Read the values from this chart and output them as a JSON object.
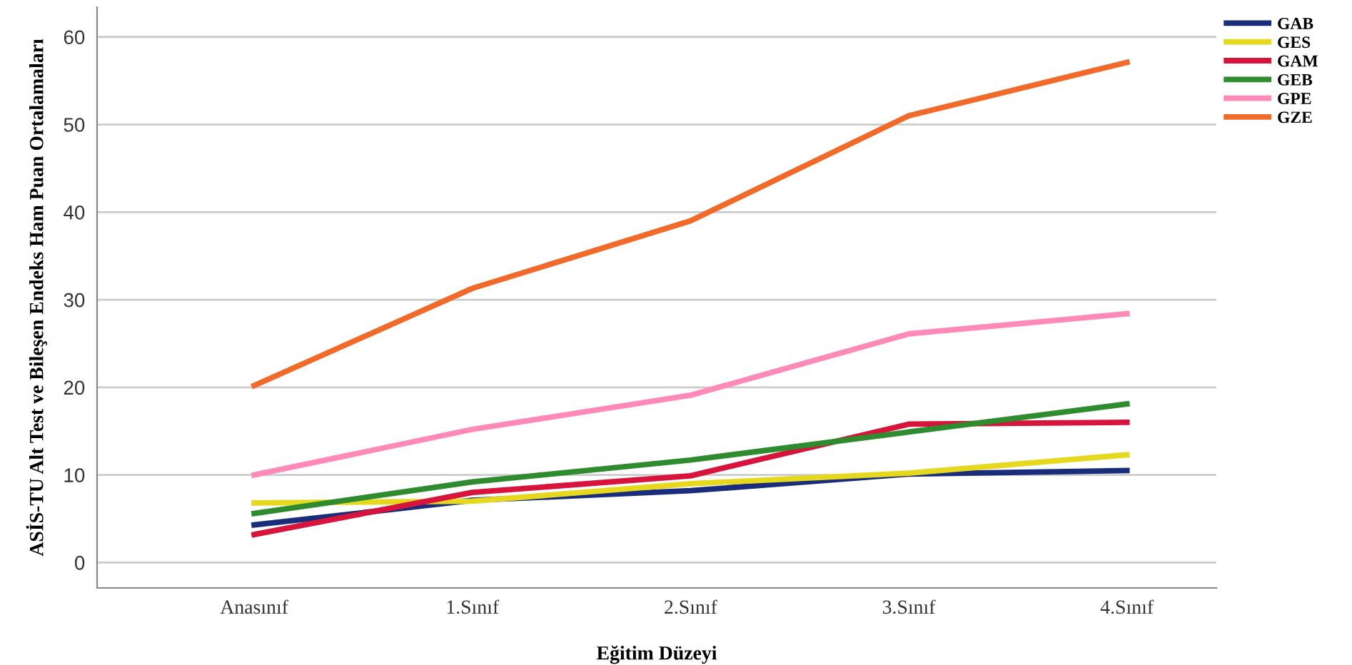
{
  "chart_data": {
    "type": "line",
    "xlabel": "Eğitim Düzeyi",
    "ylabel": "ASİS-TU Alt Test ve Bileşen Endeks Ham Puan Ortalamaları",
    "categories": [
      "Anasınıf",
      "1.Sınıf",
      "2.Sınıf",
      "3.Sınıf",
      "4.Sınıf"
    ],
    "series": [
      {
        "name": "GAB",
        "color": "#1a2d7a",
        "values": [
          4.3,
          7.1,
          8.2,
          10.1,
          10.5
        ]
      },
      {
        "name": "GES",
        "color": "#e6d81e",
        "values": [
          6.8,
          7.0,
          9.0,
          10.2,
          12.3
        ]
      },
      {
        "name": "GAM",
        "color": "#d7143c",
        "values": [
          3.2,
          8.0,
          9.9,
          15.8,
          16.0
        ]
      },
      {
        "name": "GEB",
        "color": "#2e8b2e",
        "values": [
          5.6,
          9.2,
          11.7,
          14.9,
          18.1
        ]
      },
      {
        "name": "GPE",
        "color": "#ff8ab8",
        "values": [
          10.0,
          15.2,
          19.1,
          26.1,
          28.4
        ]
      },
      {
        "name": "GZE",
        "color": "#f26a2a",
        "values": [
          20.2,
          31.3,
          39.0,
          51.0,
          57.1
        ]
      }
    ],
    "ylim": [
      -2.9,
      63.4
    ],
    "yticks": [
      0,
      10,
      20,
      30,
      40,
      50,
      60
    ],
    "grid": "y",
    "legend": "top right",
    "marker": "none",
    "line_style": "solid"
  }
}
